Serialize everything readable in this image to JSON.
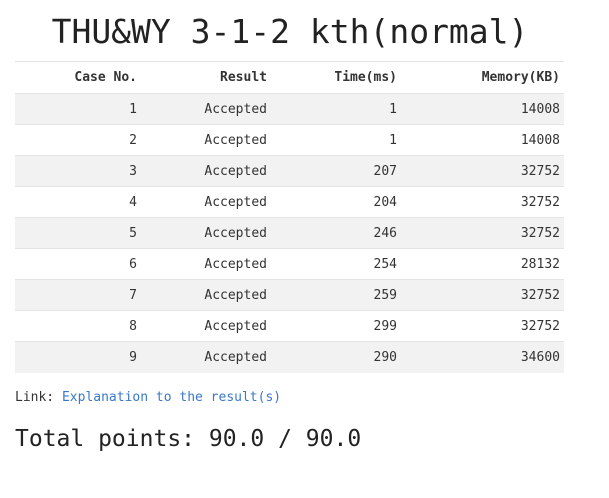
{
  "page": {
    "title": "THU&WY 3-1-2 kth(normal)"
  },
  "table": {
    "headers": [
      "Case No.",
      "Result",
      "Time(ms)",
      "Memory(KB)"
    ],
    "rows": [
      {
        "case": "1",
        "result": "Accepted",
        "time": "1",
        "memory": "14008"
      },
      {
        "case": "2",
        "result": "Accepted",
        "time": "1",
        "memory": "14008"
      },
      {
        "case": "3",
        "result": "Accepted",
        "time": "207",
        "memory": "32752"
      },
      {
        "case": "4",
        "result": "Accepted",
        "time": "204",
        "memory": "32752"
      },
      {
        "case": "5",
        "result": "Accepted",
        "time": "246",
        "memory": "32752"
      },
      {
        "case": "6",
        "result": "Accepted",
        "time": "254",
        "memory": "28132"
      },
      {
        "case": "7",
        "result": "Accepted",
        "time": "259",
        "memory": "32752"
      },
      {
        "case": "8",
        "result": "Accepted",
        "time": "299",
        "memory": "32752"
      },
      {
        "case": "9",
        "result": "Accepted",
        "time": "290",
        "memory": "34600"
      }
    ]
  },
  "link": {
    "prefix": "Link:",
    "text": "Explanation to the result(s)"
  },
  "total": {
    "text": "Total points: 90.0 / 90.0"
  },
  "colors": {
    "link": "#3a78c9",
    "row_stripe": "#f2f2f2"
  }
}
